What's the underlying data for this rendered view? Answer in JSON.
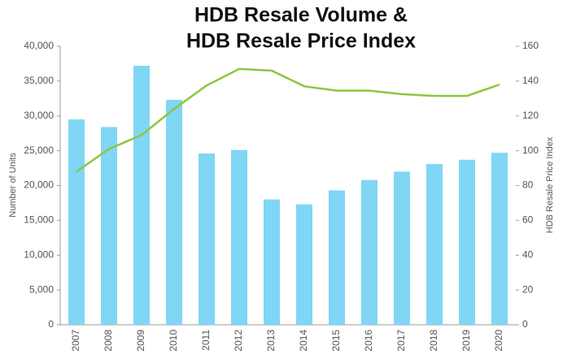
{
  "chart_data": {
    "type": "bar",
    "title": [
      "HDB Resale Volume &",
      "HDB Resale Price Index"
    ],
    "ylabel": "Number of Units",
    "y2label": "HDB Resale Price Index",
    "categories": [
      "2007",
      "2008",
      "2009",
      "2010",
      "2011",
      "2012",
      "2013",
      "2014",
      "2015",
      "2016",
      "2017",
      "2018",
      "2019",
      "2020"
    ],
    "series": [
      {
        "type": "bar",
        "color": "#7fd6f5",
        "values": [
          29500,
          28400,
          37200,
          32300,
          24600,
          25100,
          18000,
          17300,
          19300,
          20800,
          22000,
          23100,
          23700,
          24700
        ]
      },
      {
        "type": "line",
        "axis": "y2",
        "color": "#8cc63f",
        "values": [
          88,
          101,
          109,
          124,
          137.5,
          147,
          146,
          137,
          134.5,
          134.5,
          132.5,
          131.5,
          131.5,
          138
        ]
      }
    ],
    "ylim": [
      0,
      40000
    ],
    "yticks": [
      0,
      {
        "value": 5000,
        "label": "5,000"
      },
      {
        "value": 10000,
        "label": "10,000"
      },
      {
        "value": 15000,
        "label": "15,000"
      },
      {
        "value": 20000,
        "label": "20,000"
      },
      {
        "value": 25000,
        "label": "25,000"
      },
      {
        "value": 30000,
        "label": "30,000"
      },
      {
        "value": 35000,
        "label": "35,000"
      },
      {
        "value": 40000,
        "label": "40,000"
      }
    ],
    "y2lim": [
      0,
      160
    ],
    "y2ticks": [
      0,
      20,
      40,
      60,
      80,
      100,
      120,
      140,
      160
    ]
  }
}
